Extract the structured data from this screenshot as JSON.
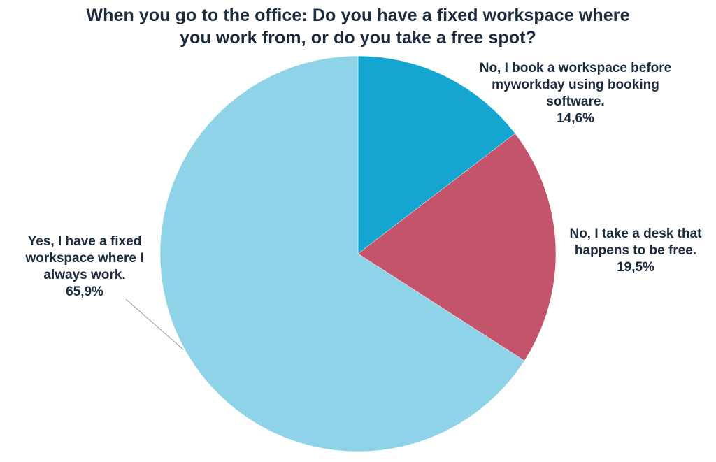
{
  "title": {
    "line1": "When you go to the office: Do you have a fixed workspace where",
    "line2": "you work from, or do you take a free spot?"
  },
  "labels": {
    "book": {
      "line1": "No, I book a workspace before",
      "line2": "myworkday using booking",
      "line3": "software.",
      "value": "14,6%"
    },
    "free": {
      "line1": "No, I take a desk that",
      "line2": "happens to be free.",
      "value": "19,5%"
    },
    "fixed": {
      "line1": "Yes, I have a fixed",
      "line2": "workspace where I",
      "line3": "always work.",
      "value": "65,9%"
    }
  },
  "colors": {
    "book": "#14a5d0",
    "free": "#c4546c",
    "fixed": "#8fd3e8",
    "text": "#1b2a3d"
  },
  "chart_data": {
    "type": "pie",
    "title": "When you go to the office: Do you have a fixed workspace where you work from, or do you take a free spot?",
    "categories": [
      "No, I book a workspace before myworkday using booking software.",
      "No, I take a desk that happens to be free.",
      "Yes, I have a fixed workspace where I always work."
    ],
    "values": [
      14.6,
      19.5,
      65.9
    ],
    "value_labels": [
      "14,6%",
      "19,5%",
      "65,9%"
    ],
    "colors": [
      "#14a5d0",
      "#c4546c",
      "#8fd3e8"
    ],
    "start_angle": "12 o'clock, clockwise",
    "legend": "none (data labels on slices)"
  }
}
